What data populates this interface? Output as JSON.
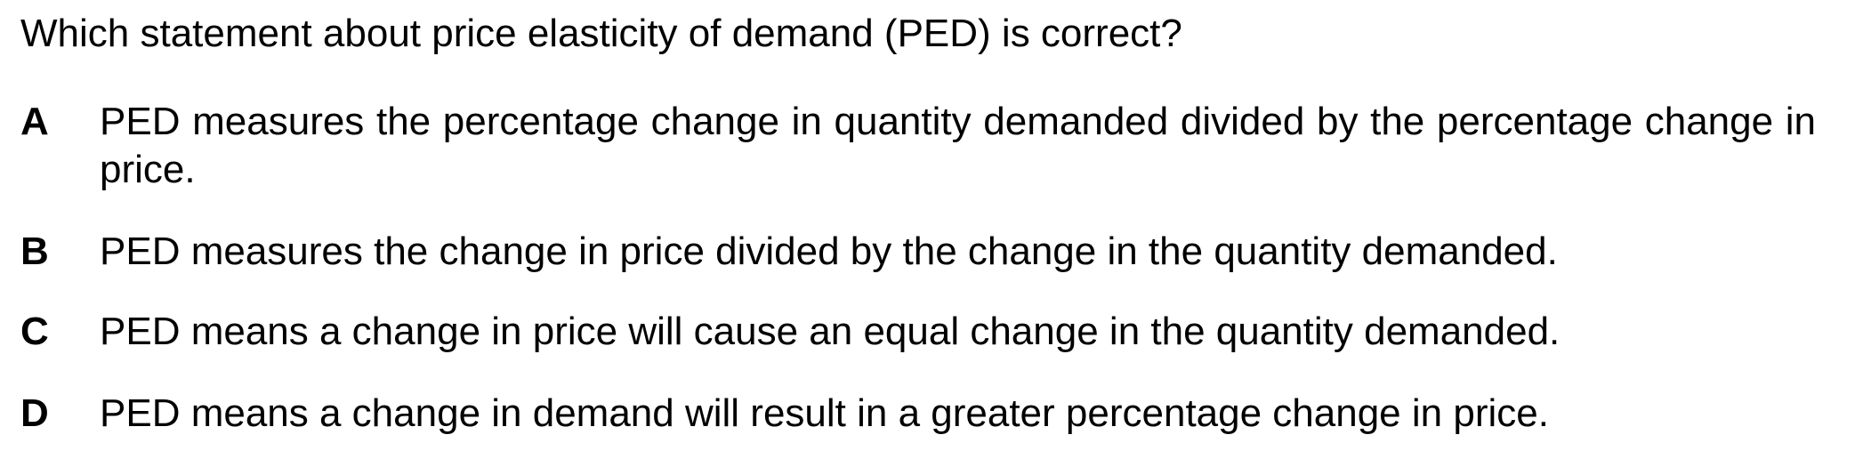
{
  "question": "Which statement about price elasticity of demand (PED) is correct?",
  "options": [
    {
      "letter": "A",
      "text": "PED measures the percentage change in quantity demanded divided by the percentage change in price."
    },
    {
      "letter": "B",
      "text": "PED measures the change in price divided by the change in the quantity demanded."
    },
    {
      "letter": "C",
      "text": "PED means a change in price will cause an equal change in the quantity demanded."
    },
    {
      "letter": "D",
      "text": "PED means a change in demand will result in a greater percentage change in price."
    }
  ]
}
